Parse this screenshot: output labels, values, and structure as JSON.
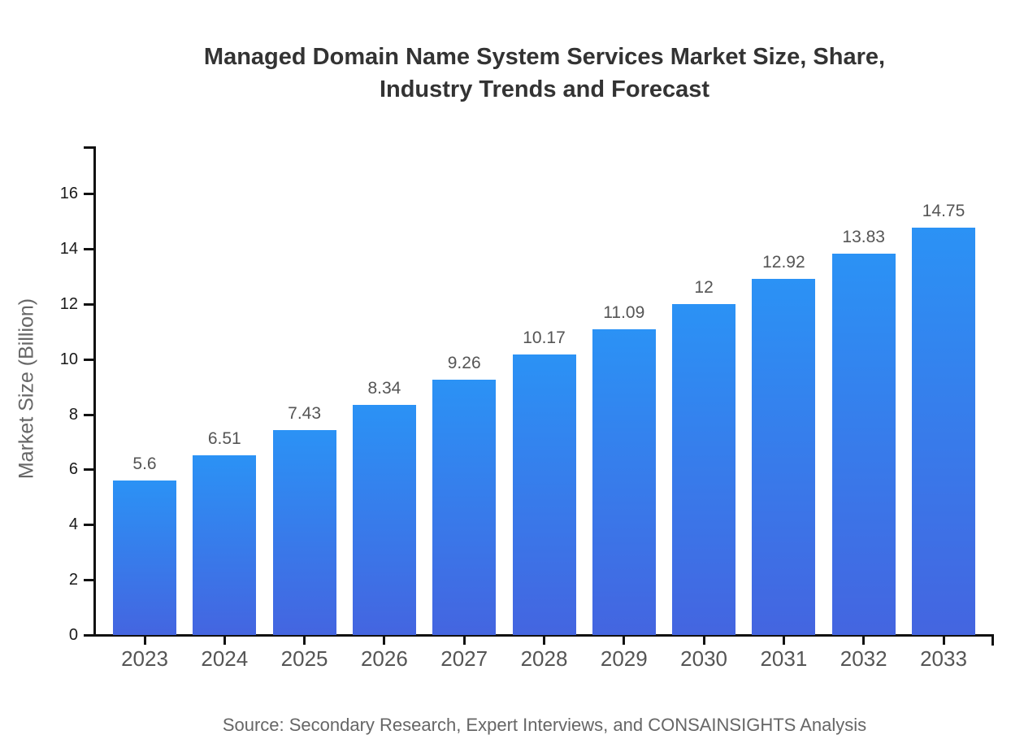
{
  "page": {
    "background": "#ffffff"
  },
  "chart_data": {
    "type": "bar",
    "title": "Managed Domain Name System Services Market Size, Share,\nIndustry Trends and Forecast",
    "categories": [
      "2023",
      "2024",
      "2025",
      "2026",
      "2027",
      "2028",
      "2029",
      "2030",
      "2031",
      "2032",
      "2033"
    ],
    "values": [
      5.6,
      6.51,
      7.43,
      8.34,
      9.26,
      10.17,
      11.09,
      12,
      12.92,
      13.83,
      14.75
    ],
    "value_labels": [
      "5.6",
      "6.51",
      "7.43",
      "8.34",
      "9.26",
      "10.17",
      "11.09",
      "12",
      "12.92",
      "13.83",
      "14.75"
    ],
    "xlabel": "",
    "ylabel": "Market Size (Billion)",
    "yticks": [
      0,
      2,
      4,
      6,
      8,
      10,
      12,
      14,
      16
    ],
    "ylim": [
      0,
      17.7
    ],
    "grid": false,
    "legend": "none",
    "source": "Source: Secondary Research, Expert Interviews, and CONSAINSIGHTS Analysis",
    "colors": {
      "bar_gradient_top": "#2b92f5",
      "bar_gradient_bottom": "#4465e0",
      "axis": "#111111",
      "title_text": "#333333",
      "y_tick_label": "#1a1a1a",
      "category_label": "#555555",
      "value_label": "#555555",
      "muted_text": "#666666"
    }
  }
}
